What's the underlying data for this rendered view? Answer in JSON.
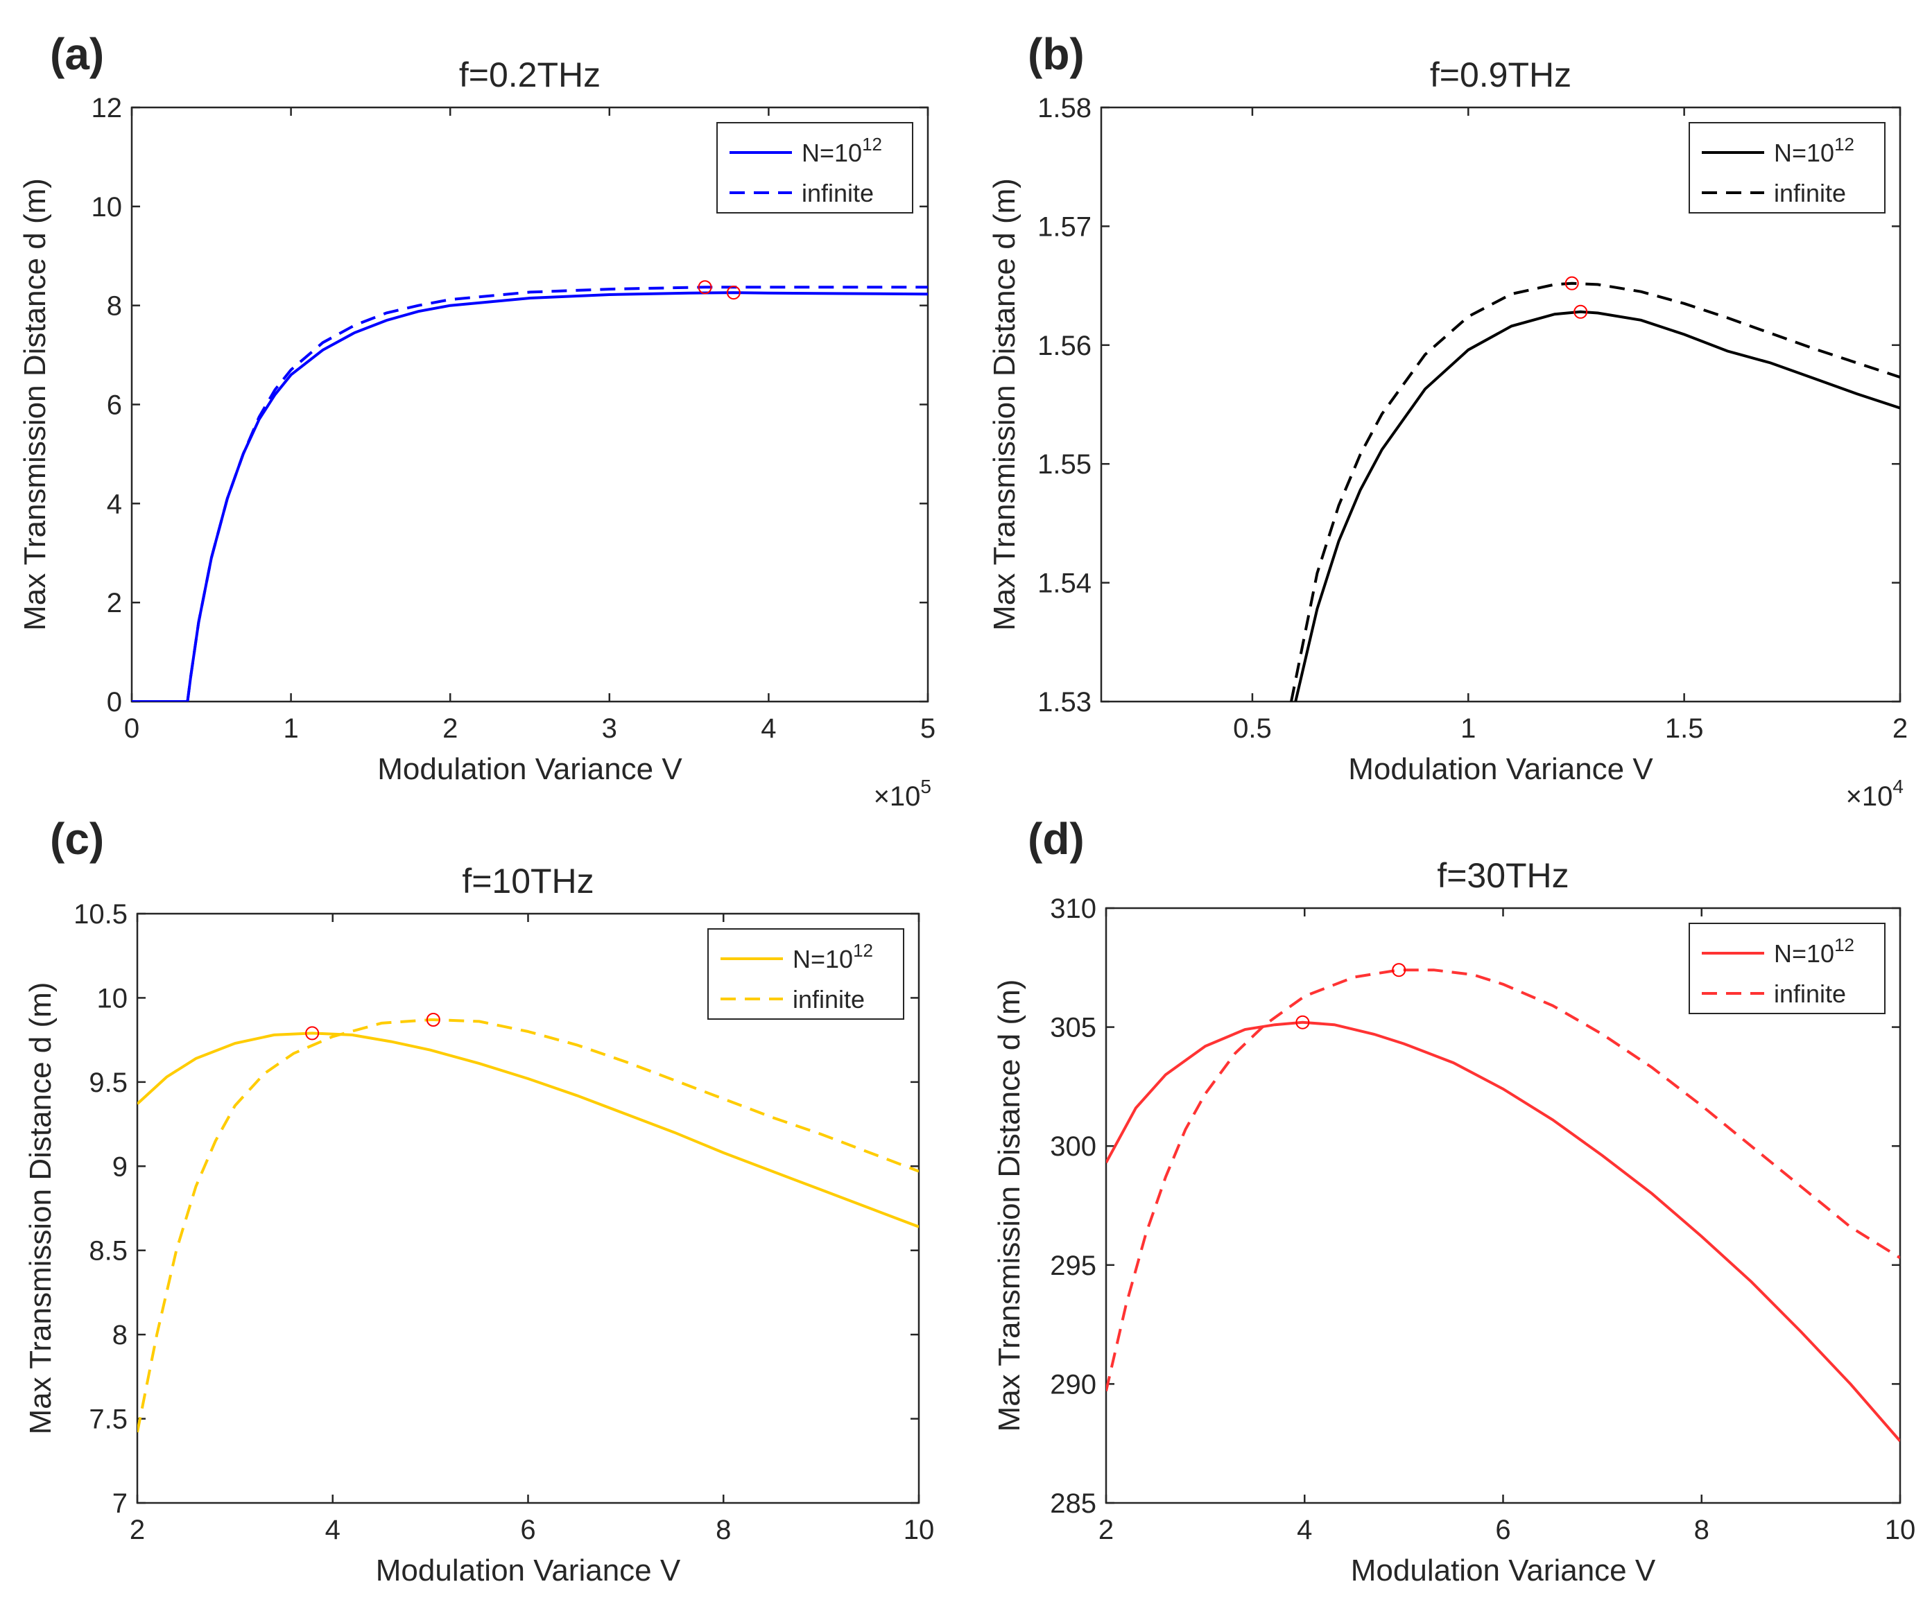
{
  "chart_data": [
    {
      "type": "line",
      "panel": "(a)",
      "title": "f=0.2THz",
      "xlabel": "Modulation Variance V",
      "ylabel": "Max Transmission Distance d (m)",
      "x_exponent": "×10",
      "x_exponent_power": "5",
      "xlim": [
        0,
        5
      ],
      "ylim": [
        0,
        12
      ],
      "x_ticks": [
        "0",
        "1",
        "2",
        "3",
        "4",
        "5"
      ],
      "y_ticks": [
        "0",
        "2",
        "4",
        "6",
        "8",
        "10",
        "12"
      ],
      "legend_position": "top-right",
      "color": "#0000ff",
      "series": [
        {
          "name": "N=10",
          "name_sup": "12",
          "style": "solid",
          "x": [
            0,
            0.35,
            0.37,
            0.42,
            0.5,
            0.6,
            0.7,
            0.8,
            0.9,
            1.0,
            1.2,
            1.4,
            1.6,
            1.8,
            2.0,
            2.5,
            3.0,
            3.5,
            3.78,
            4.0,
            4.5,
            5.0
          ],
          "y": [
            0,
            0,
            0.5,
            1.6,
            2.9,
            4.1,
            5.0,
            5.7,
            6.2,
            6.6,
            7.1,
            7.45,
            7.7,
            7.88,
            8.0,
            8.15,
            8.22,
            8.25,
            8.26,
            8.25,
            8.24,
            8.23
          ]
        },
        {
          "name": "infinite",
          "style": "dashed",
          "x": [
            0.35,
            0.37,
            0.42,
            0.5,
            0.6,
            0.7,
            0.8,
            0.9,
            1.0,
            1.2,
            1.4,
            1.6,
            1.8,
            2.0,
            2.5,
            3.0,
            3.6,
            4.0,
            4.5,
            5.0
          ],
          "y": [
            0,
            0.5,
            1.6,
            2.9,
            4.1,
            5.0,
            5.75,
            6.3,
            6.7,
            7.25,
            7.6,
            7.85,
            8.0,
            8.12,
            8.27,
            8.33,
            8.37,
            8.37,
            8.37,
            8.37
          ]
        }
      ],
      "optima": [
        {
          "series": "N=10^12",
          "x": 3.78,
          "y": 8.26
        },
        {
          "series": "infinite",
          "x": 3.6,
          "y": 8.37
        }
      ]
    },
    {
      "type": "line",
      "panel": "(b)",
      "title": "f=0.9THz",
      "xlabel": "Modulation Variance V",
      "ylabel": "Max Transmission Distance d (m)",
      "x_exponent": "×10",
      "x_exponent_power": "4",
      "xlim": [
        0.15,
        2
      ],
      "ylim": [
        1.53,
        1.58
      ],
      "x_ticks": [
        "0.5",
        "1",
        "1.5",
        "2"
      ],
      "x_tick_values": [
        0.5,
        1,
        1.5,
        2
      ],
      "y_ticks": [
        "1.53",
        "1.54",
        "1.55",
        "1.56",
        "1.57",
        "1.58"
      ],
      "legend_position": "top-right",
      "color": "#000000",
      "series": [
        {
          "name": "N=10",
          "name_sup": "12",
          "style": "solid",
          "x": [
            0.6,
            0.65,
            0.7,
            0.75,
            0.8,
            0.9,
            1.0,
            1.1,
            1.2,
            1.26,
            1.3,
            1.4,
            1.5,
            1.6,
            1.7,
            1.8,
            1.9,
            2.0
          ],
          "y": [
            1.53,
            1.5378,
            1.5435,
            1.5478,
            1.5512,
            1.5563,
            1.5596,
            1.5616,
            1.5626,
            1.5628,
            1.5627,
            1.5621,
            1.5609,
            1.5595,
            1.5585,
            1.5572,
            1.5559,
            1.5547
          ]
        },
        {
          "name": "infinite",
          "style": "dashed",
          "x": [
            0.59,
            0.65,
            0.7,
            0.75,
            0.8,
            0.9,
            1.0,
            1.1,
            1.2,
            1.24,
            1.3,
            1.4,
            1.5,
            1.6,
            1.7,
            1.8,
            1.9,
            2.0
          ],
          "y": [
            1.53,
            1.5408,
            1.5465,
            1.5508,
            1.5542,
            1.5592,
            1.5624,
            1.5643,
            1.5651,
            1.5652,
            1.5651,
            1.5645,
            1.5635,
            1.5623,
            1.561,
            1.5597,
            1.5585,
            1.5573
          ]
        }
      ],
      "optima": [
        {
          "series": "N=10^12",
          "x": 1.26,
          "y": 1.5628
        },
        {
          "series": "infinite",
          "x": 1.24,
          "y": 1.5652
        }
      ]
    },
    {
      "type": "line",
      "panel": "(c)",
      "title": "f=10THz",
      "xlabel": "Modulation Variance V",
      "ylabel": "Max Transmission Distance d (m)",
      "xlim": [
        2,
        10
      ],
      "ylim": [
        7,
        10.5
      ],
      "x_ticks": [
        "2",
        "4",
        "6",
        "8",
        "10"
      ],
      "y_ticks": [
        "7",
        "7.5",
        "8",
        "8.5",
        "9",
        "9.5",
        "10",
        "10.5"
      ],
      "legend_position": "top-right",
      "color": "#ffcc00",
      "series": [
        {
          "name": "N=10",
          "name_sup": "12",
          "style": "solid",
          "x": [
            2.0,
            2.3,
            2.6,
            3.0,
            3.4,
            3.79,
            4.2,
            4.6,
            5.0,
            5.5,
            6.0,
            6.5,
            7.0,
            7.5,
            8.0,
            8.5,
            9.0,
            9.5,
            10.0
          ],
          "y": [
            9.37,
            9.53,
            9.64,
            9.73,
            9.78,
            9.79,
            9.78,
            9.74,
            9.69,
            9.61,
            9.52,
            9.42,
            9.31,
            9.2,
            9.08,
            8.97,
            8.86,
            8.75,
            8.64
          ]
        },
        {
          "name": "infinite",
          "style": "dashed",
          "x": [
            2.0,
            2.2,
            2.4,
            2.6,
            2.8,
            3.0,
            3.3,
            3.6,
            4.0,
            4.5,
            5.0,
            5.03,
            5.5,
            6.0,
            6.5,
            7.0,
            7.5,
            8.0,
            8.5,
            9.0,
            9.5,
            10.0
          ],
          "y": [
            7.42,
            8.0,
            8.5,
            8.88,
            9.15,
            9.36,
            9.55,
            9.67,
            9.77,
            9.85,
            9.87,
            9.87,
            9.86,
            9.8,
            9.72,
            9.62,
            9.51,
            9.4,
            9.29,
            9.19,
            9.08,
            8.97
          ]
        }
      ],
      "optima": [
        {
          "series": "N=10^12",
          "x": 3.79,
          "y": 9.79
        },
        {
          "series": "infinite",
          "x": 5.03,
          "y": 9.87
        }
      ]
    },
    {
      "type": "line",
      "panel": "(d)",
      "title": "f=30THz",
      "xlabel": "Modulation Variance V",
      "ylabel": "Max Transmission Distance d (m)",
      "xlim": [
        2,
        10
      ],
      "ylim": [
        285,
        310
      ],
      "x_ticks": [
        "2",
        "4",
        "6",
        "8",
        "10"
      ],
      "y_ticks": [
        "285",
        "290",
        "295",
        "300",
        "305",
        "310"
      ],
      "legend_position": "top-right",
      "color": "#ff3333",
      "series": [
        {
          "name": "N=10",
          "name_sup": "12",
          "style": "solid",
          "x": [
            2.0,
            2.3,
            2.6,
            3.0,
            3.4,
            3.7,
            3.98,
            4.3,
            4.7,
            5.0,
            5.5,
            6.0,
            6.5,
            7.0,
            7.5,
            8.0,
            8.5,
            9.0,
            9.5,
            10.0
          ],
          "y": [
            299.3,
            301.6,
            303.0,
            304.2,
            304.9,
            305.1,
            305.2,
            305.1,
            304.7,
            304.3,
            303.5,
            302.4,
            301.1,
            299.6,
            298.0,
            296.2,
            294.3,
            292.2,
            290.0,
            287.6
          ]
        },
        {
          "name": "infinite",
          "style": "dashed",
          "x": [
            2.0,
            2.2,
            2.4,
            2.6,
            2.8,
            3.0,
            3.3,
            3.6,
            4.0,
            4.5,
            4.95,
            5.3,
            5.7,
            6.0,
            6.5,
            7.0,
            7.5,
            8.0,
            8.5,
            9.0,
            9.5,
            10.0
          ],
          "y": [
            289.7,
            293.3,
            296.3,
            298.7,
            300.7,
            302.2,
            303.9,
            305.1,
            306.3,
            307.1,
            307.4,
            307.4,
            307.2,
            306.8,
            305.9,
            304.7,
            303.3,
            301.7,
            300.0,
            298.3,
            296.6,
            295.3
          ]
        }
      ],
      "optima": [
        {
          "series": "N=10^12",
          "x": 3.98,
          "y": 305.2
        },
        {
          "series": "infinite",
          "x": 4.95,
          "y": 307.4
        }
      ]
    }
  ]
}
